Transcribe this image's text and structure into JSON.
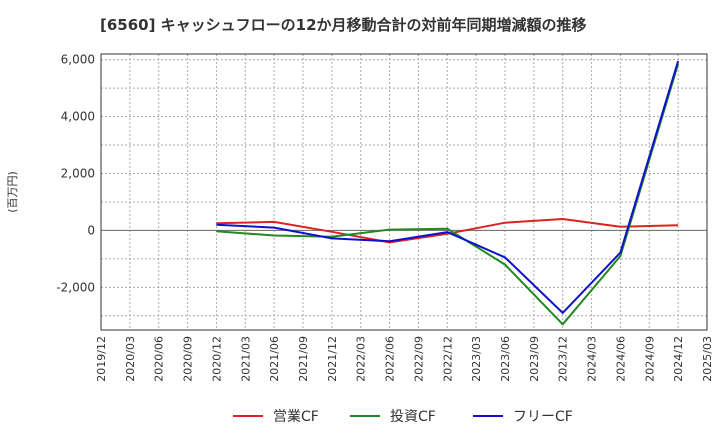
{
  "chart_data": {
    "type": "line",
    "title": "[6560]  キャッシュフローの12か月移動合計の対前年同期増減額の推移",
    "ylabel": "(百万円)",
    "xlabel": "",
    "ylim": [
      -3500,
      6200
    ],
    "yticks": [
      6000,
      4000,
      2000,
      0,
      -2000
    ],
    "ytick_labels": [
      "6,000",
      "4,000",
      "2,000",
      "0",
      "-2,000"
    ],
    "x_labels": [
      "2019/12",
      "2020/03",
      "2020/06",
      "2020/09",
      "2020/12",
      "2021/03",
      "2021/06",
      "2021/09",
      "2021/12",
      "2022/03",
      "2022/06",
      "2022/09",
      "2022/12",
      "2023/03",
      "2023/06",
      "2023/09",
      "2023/12",
      "2024/03",
      "2024/06",
      "2024/09",
      "2024/12",
      "2025/03"
    ],
    "grid": true,
    "legend_position": "bottom",
    "series": [
      {
        "name": "営業CF",
        "color": "#dd2222",
        "points": [
          {
            "x": "2020/12",
            "y": 250
          },
          {
            "x": "2021/06",
            "y": 300
          },
          {
            "x": "2021/12",
            "y": -50
          },
          {
            "x": "2022/06",
            "y": -420
          },
          {
            "x": "2022/12",
            "y": -120
          },
          {
            "x": "2023/06",
            "y": 270
          },
          {
            "x": "2023/12",
            "y": 400
          },
          {
            "x": "2024/06",
            "y": 130
          },
          {
            "x": "2024/12",
            "y": 180
          }
        ]
      },
      {
        "name": "投資CF",
        "color": "#228822",
        "points": [
          {
            "x": "2020/12",
            "y": -30
          },
          {
            "x": "2021/06",
            "y": -180
          },
          {
            "x": "2021/12",
            "y": -220
          },
          {
            "x": "2022/06",
            "y": 30
          },
          {
            "x": "2022/12",
            "y": 60
          },
          {
            "x": "2023/06",
            "y": -1200
          },
          {
            "x": "2023/12",
            "y": -3300
          },
          {
            "x": "2024/06",
            "y": -900
          },
          {
            "x": "2024/12",
            "y": 5850
          }
        ]
      },
      {
        "name": "フリーCF",
        "color": "#1111cc",
        "points": [
          {
            "x": "2020/12",
            "y": 200
          },
          {
            "x": "2021/06",
            "y": 100
          },
          {
            "x": "2021/12",
            "y": -280
          },
          {
            "x": "2022/06",
            "y": -380
          },
          {
            "x": "2022/12",
            "y": -60
          },
          {
            "x": "2023/06",
            "y": -950
          },
          {
            "x": "2023/12",
            "y": -2900
          },
          {
            "x": "2024/06",
            "y": -780
          },
          {
            "x": "2024/12",
            "y": 5950
          }
        ]
      }
    ]
  }
}
